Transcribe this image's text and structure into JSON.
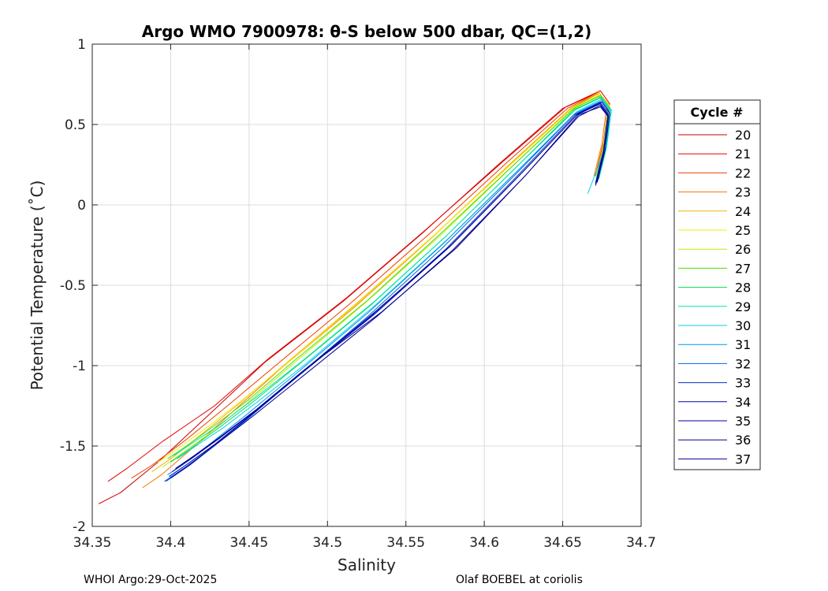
{
  "chart_data": {
    "type": "line",
    "title": "Argo WMO 7900978: θ-S below 500 dbar,  QC=(1,2)",
    "xlabel": "Salinity",
    "ylabel": "Potential Temperature (˚C)",
    "xlim": [
      34.35,
      34.7
    ],
    "ylim": [
      -2,
      1
    ],
    "xticks": [
      "34.35",
      "34.4",
      "34.45",
      "34.5",
      "34.55",
      "34.6",
      "34.65",
      "34.7"
    ],
    "yticks": [
      "-2",
      "-1.5",
      "-1",
      "-0.5",
      "0",
      "0.5",
      "1"
    ],
    "grid": true,
    "legend": {
      "title": "Cycle #",
      "placement": "right"
    },
    "series": [
      {
        "name": "20",
        "color": "#c80000",
        "x": [
          34.354,
          34.368,
          34.392,
          34.425,
          34.46,
          34.51,
          34.56,
          34.61,
          34.65,
          34.673,
          34.679,
          34.676,
          34.671
        ],
        "y": [
          -1.86,
          -1.79,
          -1.6,
          -1.3,
          -0.98,
          -0.6,
          -0.18,
          0.26,
          0.6,
          0.7,
          0.62,
          0.38,
          0.18
        ]
      },
      {
        "name": "21",
        "color": "#e60000",
        "x": [
          34.36,
          34.372,
          34.395,
          34.428,
          34.462,
          34.512,
          34.562,
          34.612,
          34.652,
          34.674,
          34.68,
          34.677,
          34.672
        ],
        "y": [
          -1.72,
          -1.64,
          -1.47,
          -1.25,
          -0.96,
          -0.58,
          -0.16,
          0.27,
          0.61,
          0.71,
          0.63,
          0.4,
          0.2
        ]
      },
      {
        "name": "22",
        "color": "#f03c00",
        "x": [
          34.375,
          34.388,
          34.41,
          34.435,
          34.468,
          34.515,
          34.565,
          34.614,
          34.653,
          34.673,
          34.679,
          34.676,
          34.671
        ],
        "y": [
          -1.7,
          -1.62,
          -1.46,
          -1.26,
          -0.99,
          -0.61,
          -0.18,
          0.26,
          0.6,
          0.7,
          0.62,
          0.39,
          0.19
        ]
      },
      {
        "name": "23",
        "color": "#f07800",
        "x": [
          34.382,
          34.394,
          34.413,
          34.438,
          34.47,
          34.518,
          34.567,
          34.616,
          34.654,
          34.672,
          34.678,
          34.675,
          34.67
        ],
        "y": [
          -1.76,
          -1.68,
          -1.52,
          -1.3,
          -1.02,
          -0.63,
          -0.2,
          0.25,
          0.59,
          0.69,
          0.61,
          0.38,
          0.18
        ]
      },
      {
        "name": "24",
        "color": "#f0b400",
        "x": [
          34.388,
          34.4,
          34.418,
          34.442,
          34.473,
          34.52,
          34.569,
          34.617,
          34.655,
          34.673,
          34.68,
          34.677,
          34.672
        ],
        "y": [
          -1.66,
          -1.58,
          -1.44,
          -1.25,
          -0.99,
          -0.6,
          -0.18,
          0.26,
          0.6,
          0.7,
          0.62,
          0.39,
          0.19
        ]
      },
      {
        "name": "25",
        "color": "#f0f000",
        "x": [
          34.392,
          34.404,
          34.421,
          34.445,
          34.476,
          34.522,
          34.57,
          34.618,
          34.656,
          34.674,
          34.68,
          34.677,
          34.672
        ],
        "y": [
          -1.6,
          -1.52,
          -1.4,
          -1.22,
          -0.97,
          -0.59,
          -0.17,
          0.26,
          0.6,
          0.69,
          0.61,
          0.38,
          0.18
        ]
      },
      {
        "name": "26",
        "color": "#b4f000",
        "x": [
          34.395,
          34.408,
          34.425,
          34.448,
          34.478,
          34.524,
          34.572,
          34.619,
          34.656,
          34.673,
          34.679,
          34.676,
          34.671
        ],
        "y": [
          -1.63,
          -1.54,
          -1.42,
          -1.24,
          -0.99,
          -0.61,
          -0.19,
          0.25,
          0.59,
          0.68,
          0.6,
          0.37,
          0.17
        ]
      },
      {
        "name": "27",
        "color": "#50dc00",
        "x": [
          34.398,
          34.41,
          34.427,
          34.45,
          34.48,
          34.526,
          34.573,
          34.62,
          34.657,
          34.674,
          34.68,
          34.677,
          34.672
        ],
        "y": [
          -1.58,
          -1.5,
          -1.38,
          -1.21,
          -0.96,
          -0.59,
          -0.17,
          0.26,
          0.6,
          0.68,
          0.6,
          0.37,
          0.17
        ]
      },
      {
        "name": "28",
        "color": "#00dc50",
        "x": [
          34.4,
          34.412,
          34.429,
          34.452,
          34.482,
          34.528,
          34.575,
          34.621,
          34.657,
          34.674,
          34.681,
          34.678,
          34.673
        ],
        "y": [
          -1.6,
          -1.52,
          -1.4,
          -1.23,
          -0.99,
          -0.62,
          -0.2,
          0.24,
          0.59,
          0.67,
          0.59,
          0.36,
          0.16
        ]
      },
      {
        "name": "29",
        "color": "#00e6b4",
        "x": [
          34.402,
          34.414,
          34.431,
          34.454,
          34.484,
          34.53,
          34.576,
          34.622,
          34.658,
          34.675,
          34.681,
          34.678,
          34.673
        ],
        "y": [
          -1.56,
          -1.48,
          -1.37,
          -1.2,
          -0.97,
          -0.6,
          -0.19,
          0.25,
          0.59,
          0.67,
          0.59,
          0.36,
          0.16
        ]
      },
      {
        "name": "30",
        "color": "#00d2e6",
        "x": [
          34.404,
          34.416,
          34.433,
          34.456,
          34.486,
          34.531,
          34.577,
          34.623,
          34.659,
          34.675,
          34.681,
          34.677,
          34.666
        ],
        "y": [
          -1.58,
          -1.5,
          -1.39,
          -1.22,
          -0.99,
          -0.62,
          -0.21,
          0.23,
          0.58,
          0.66,
          0.58,
          0.35,
          0.07
        ]
      },
      {
        "name": "31",
        "color": "#0096f0",
        "x": [
          34.398,
          34.41,
          34.426,
          34.449,
          34.48,
          34.526,
          34.574,
          34.621,
          34.658,
          34.675,
          34.68,
          34.677,
          34.672
        ],
        "y": [
          -1.68,
          -1.6,
          -1.48,
          -1.3,
          -1.05,
          -0.67,
          -0.24,
          0.21,
          0.57,
          0.65,
          0.58,
          0.35,
          0.15
        ]
      },
      {
        "name": "32",
        "color": "#0064dc",
        "x": [
          34.396,
          34.408,
          34.425,
          34.448,
          34.479,
          34.525,
          34.573,
          34.62,
          34.657,
          34.674,
          34.679,
          34.676,
          34.671
        ],
        "y": [
          -1.72,
          -1.64,
          -1.52,
          -1.34,
          -1.08,
          -0.7,
          -0.27,
          0.19,
          0.56,
          0.64,
          0.57,
          0.34,
          0.14
        ]
      },
      {
        "name": "33",
        "color": "#0032c8",
        "x": [
          34.397,
          34.41,
          34.427,
          34.45,
          34.482,
          34.528,
          34.576,
          34.622,
          34.658,
          34.674,
          34.679,
          34.676,
          34.671
        ],
        "y": [
          -1.72,
          -1.63,
          -1.5,
          -1.32,
          -1.06,
          -0.69,
          -0.27,
          0.19,
          0.56,
          0.63,
          0.56,
          0.33,
          0.13
        ]
      },
      {
        "name": "34",
        "color": "#0000b4",
        "x": [
          34.399,
          34.411,
          34.428,
          34.452,
          34.483,
          34.53,
          34.578,
          34.624,
          34.659,
          34.674,
          34.679,
          34.676,
          34.671
        ],
        "y": [
          -1.69,
          -1.61,
          -1.49,
          -1.3,
          -1.05,
          -0.68,
          -0.26,
          0.2,
          0.56,
          0.63,
          0.56,
          0.33,
          0.13
        ]
      },
      {
        "name": "35",
        "color": "#0000a0",
        "x": [
          34.401,
          34.413,
          34.43,
          34.454,
          34.485,
          34.531,
          34.579,
          34.625,
          34.66,
          34.675,
          34.68,
          34.677,
          34.672
        ],
        "y": [
          -1.66,
          -1.58,
          -1.46,
          -1.28,
          -1.03,
          -0.66,
          -0.25,
          0.21,
          0.57,
          0.64,
          0.57,
          0.34,
          0.14
        ]
      },
      {
        "name": "36",
        "color": "#00008c",
        "x": [
          34.403,
          34.415,
          34.432,
          34.455,
          34.486,
          34.534,
          34.582,
          34.627,
          34.66,
          34.674,
          34.679,
          34.676,
          34.671
        ],
        "y": [
          -1.64,
          -1.56,
          -1.44,
          -1.27,
          -1.02,
          -0.67,
          -0.27,
          0.19,
          0.56,
          0.61,
          0.55,
          0.32,
          0.12
        ]
      },
      {
        "name": "37",
        "color": "#000096",
        "x": [
          34.4,
          34.412,
          34.429,
          34.453,
          34.485,
          34.532,
          34.58,
          34.626,
          34.66,
          34.674,
          34.679,
          34.676,
          34.672
        ],
        "y": [
          -1.7,
          -1.62,
          -1.49,
          -1.31,
          -1.06,
          -0.69,
          -0.28,
          0.18,
          0.55,
          0.62,
          0.55,
          0.32,
          0.14
        ]
      }
    ]
  },
  "footer": {
    "left": "WHOI Argo:29-Oct-2025",
    "right": "Olaf BOEBEL at coriolis"
  }
}
